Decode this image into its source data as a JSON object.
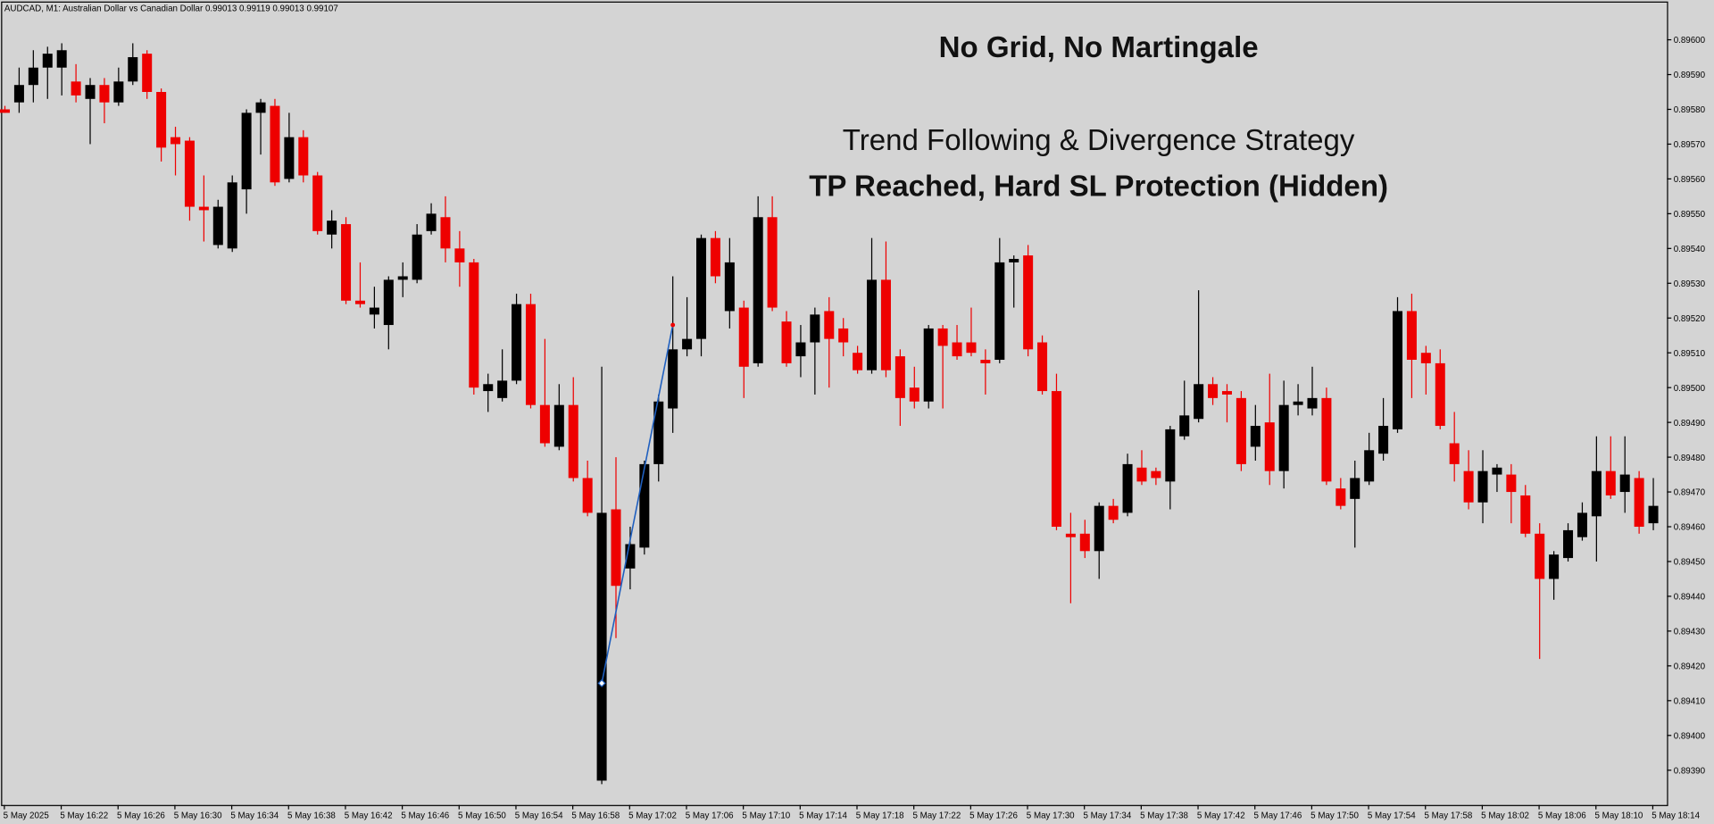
{
  "chart_data": {
    "type": "candlestick",
    "header": "AUDCAD, M1:  Australian Dollar vs Canadian Dollar  0.99013 0.99119 0.99013 0.99107",
    "title": "No Grid, No Martingale",
    "subtitle": "Trend Following & Divergence Strategy",
    "annotation": "TP Reached, Hard SL Protection (Hidden)",
    "up_color": "#000000",
    "down_color": "#ee0000",
    "trade_line": {
      "color": "#1f5fbf",
      "x": [
        42,
        47
      ],
      "values": [
        0.89415,
        0.89518
      ]
    },
    "ylim": [
      0.8938,
      0.89611
    ],
    "yticks": [
      {
        "value": 0.896,
        "label": "0.89600"
      },
      {
        "value": 0.8959,
        "label": "0.89590"
      },
      {
        "value": 0.8958,
        "label": "0.89580"
      },
      {
        "value": 0.8957,
        "label": "0.89570"
      },
      {
        "value": 0.8956,
        "label": "0.89560"
      },
      {
        "value": 0.8955,
        "label": "0.89550"
      },
      {
        "value": 0.8954,
        "label": "0.89540"
      },
      {
        "value": 0.8953,
        "label": "0.89530"
      },
      {
        "value": 0.8952,
        "label": "0.89520"
      },
      {
        "value": 0.8951,
        "label": "0.89510"
      },
      {
        "value": 0.895,
        "label": "0.89500"
      },
      {
        "value": 0.8949,
        "label": "0.89490"
      },
      {
        "value": 0.8948,
        "label": "0.89480"
      },
      {
        "value": 0.8947,
        "label": "0.89470"
      },
      {
        "value": 0.8946,
        "label": "0.89460"
      },
      {
        "value": 0.8945,
        "label": "0.89450"
      },
      {
        "value": 0.8944,
        "label": "0.89440"
      },
      {
        "value": 0.8943,
        "label": "0.89430"
      },
      {
        "value": 0.8942,
        "label": "0.89420"
      },
      {
        "value": 0.8941,
        "label": "0.89410"
      },
      {
        "value": 0.894,
        "label": "0.89400"
      },
      {
        "value": 0.8939,
        "label": "0.89390"
      }
    ],
    "xticks": [
      {
        "value": 0,
        "label": "5 May 2025"
      },
      {
        "value": 4,
        "label": "5 May 16:22"
      },
      {
        "value": 8,
        "label": "5 May 16:26"
      },
      {
        "value": 12,
        "label": "5 May 16:30"
      },
      {
        "value": 16,
        "label": "5 May 16:34"
      },
      {
        "value": 20,
        "label": "5 May 16:38"
      },
      {
        "value": 24,
        "label": "5 May 16:42"
      },
      {
        "value": 28,
        "label": "5 May 16:46"
      },
      {
        "value": 32,
        "label": "5 May 16:50"
      },
      {
        "value": 36,
        "label": "5 May 16:54"
      },
      {
        "value": 40,
        "label": "5 May 16:58"
      },
      {
        "value": 44,
        "label": "5 May 17:02"
      },
      {
        "value": 48,
        "label": "5 May 17:06"
      },
      {
        "value": 52,
        "label": "5 May 17:10"
      },
      {
        "value": 56,
        "label": "5 May 17:14"
      },
      {
        "value": 60,
        "label": "5 May 17:18"
      },
      {
        "value": 64,
        "label": "5 May 17:22"
      },
      {
        "value": 68,
        "label": "5 May 17:26"
      },
      {
        "value": 72,
        "label": "5 May 17:30"
      },
      {
        "value": 76,
        "label": "5 May 17:34"
      },
      {
        "value": 80,
        "label": "5 May 17:38"
      },
      {
        "value": 84,
        "label": "5 May 17:42"
      },
      {
        "value": 88,
        "label": "5 May 17:46"
      },
      {
        "value": 92,
        "label": "5 May 17:50"
      },
      {
        "value": 96,
        "label": "5 May 17:54"
      },
      {
        "value": 100,
        "label": "5 May 17:58"
      },
      {
        "value": 104,
        "label": "5 May 18:02"
      },
      {
        "value": 108,
        "label": "5 May 18:06"
      },
      {
        "value": 112,
        "label": "5 May 18:10"
      },
      {
        "value": 116,
        "label": "5 May 18:14"
      }
    ],
    "open": [
      0.8958,
      0.89582,
      0.89587,
      0.89592,
      0.89592,
      0.89588,
      0.89583,
      0.89587,
      0.89582,
      0.89588,
      0.89596,
      0.89585,
      0.89572,
      0.89571,
      0.89552,
      0.89541,
      0.8954,
      0.89557,
      0.89579,
      0.89581,
      0.8956,
      0.89572,
      0.89561,
      0.89544,
      0.89547,
      0.89525,
      0.89521,
      0.89518,
      0.89531,
      0.89531,
      0.89545,
      0.89549,
      0.8954,
      0.89536,
      0.89499,
      0.89497,
      0.89502,
      0.89524,
      0.89495,
      0.89483,
      0.89495,
      0.89474,
      0.89387,
      0.89465,
      0.89448,
      0.89454,
      0.89478,
      0.89494,
      0.89511,
      0.89514,
      0.89543,
      0.89522,
      0.89523,
      0.89507,
      0.89549,
      0.89519,
      0.89509,
      0.89513,
      0.89522,
      0.89517,
      0.8951,
      0.89505,
      0.89531,
      0.89509,
      0.895,
      0.89496,
      0.89517,
      0.89513,
      0.89513,
      0.89508,
      0.89508,
      0.89536,
      0.89538,
      0.89513,
      0.89499,
      0.89458,
      0.89458,
      0.89453,
      0.89466,
      0.89464,
      0.89477,
      0.89476,
      0.89473,
      0.89486,
      0.89491,
      0.89501,
      0.89499,
      0.89497,
      0.89483,
      0.8949,
      0.89476,
      0.89495,
      0.89494,
      0.89497,
      0.89471,
      0.89468,
      0.89473,
      0.89481,
      0.89488,
      0.89522,
      0.8951,
      0.89507,
      0.89484,
      0.89476,
      0.89467,
      0.89475,
      0.89475,
      0.89469,
      0.89458,
      0.89445,
      0.89451,
      0.89457,
      0.89463,
      0.89476,
      0.8947,
      0.89474,
      0.89461
    ],
    "high": [
      0.89581,
      0.89592,
      0.89597,
      0.89598,
      0.89599,
      0.89593,
      0.89589,
      0.89589,
      0.89592,
      0.89599,
      0.89597,
      0.89586,
      0.89575,
      0.89572,
      0.89561,
      0.89554,
      0.89561,
      0.8958,
      0.89583,
      0.89583,
      0.89579,
      0.89574,
      0.89562,
      0.89551,
      0.89549,
      0.89536,
      0.89529,
      0.89532,
      0.89536,
      0.89547,
      0.89553,
      0.89555,
      0.89545,
      0.89537,
      0.89504,
      0.89511,
      0.89527,
      0.89527,
      0.89514,
      0.89501,
      0.89503,
      0.89479,
      0.89506,
      0.8948,
      0.8946,
      0.89479,
      0.89498,
      0.89532,
      0.89526,
      0.89544,
      0.89545,
      0.89543,
      0.89525,
      0.89555,
      0.89555,
      0.89522,
      0.89518,
      0.89523,
      0.89526,
      0.8952,
      0.89512,
      0.89543,
      0.89542,
      0.89511,
      0.89506,
      0.89518,
      0.89518,
      0.89518,
      0.89523,
      0.89511,
      0.89543,
      0.89538,
      0.89541,
      0.89515,
      0.89504,
      0.89464,
      0.89462,
      0.89467,
      0.89468,
      0.89481,
      0.89482,
      0.89477,
      0.89489,
      0.89502,
      0.89528,
      0.89503,
      0.89501,
      0.89499,
      0.89495,
      0.89504,
      0.89502,
      0.89501,
      0.89506,
      0.895,
      0.89474,
      0.89479,
      0.89487,
      0.89497,
      0.89526,
      0.89527,
      0.89512,
      0.89511,
      0.89493,
      0.89482,
      0.89482,
      0.89478,
      0.89478,
      0.89472,
      0.89461,
      0.89453,
      0.89461,
      0.89467,
      0.89486,
      0.89486,
      0.89486,
      0.89476,
      0.89474
    ],
    "low": [
      0.89579,
      0.89579,
      0.89582,
      0.89583,
      0.89584,
      0.89582,
      0.8957,
      0.89576,
      0.89581,
      0.89587,
      0.89583,
      0.89565,
      0.89561,
      0.89548,
      0.89542,
      0.8954,
      0.89539,
      0.8955,
      0.89567,
      0.89558,
      0.89559,
      0.89559,
      0.89544,
      0.8954,
      0.89524,
      0.89523,
      0.89517,
      0.89511,
      0.89526,
      0.8953,
      0.89544,
      0.89536,
      0.89529,
      0.89498,
      0.89493,
      0.89496,
      0.89501,
      0.89494,
      0.89483,
      0.89482,
      0.89473,
      0.89463,
      0.89386,
      0.89428,
      0.89442,
      0.89452,
      0.89473,
      0.89487,
      0.89509,
      0.89509,
      0.8953,
      0.89517,
      0.89497,
      0.89506,
      0.89522,
      0.89506,
      0.89503,
      0.89498,
      0.895,
      0.89509,
      0.89504,
      0.89504,
      0.89503,
      0.89489,
      0.89494,
      0.89494,
      0.89494,
      0.89508,
      0.89509,
      0.89498,
      0.89507,
      0.89523,
      0.89509,
      0.89498,
      0.89459,
      0.89438,
      0.89451,
      0.89445,
      0.89461,
      0.89463,
      0.89472,
      0.89472,
      0.89465,
      0.89485,
      0.8949,
      0.89495,
      0.8949,
      0.89476,
      0.89479,
      0.89472,
      0.89471,
      0.89492,
      0.89492,
      0.89472,
      0.89465,
      0.89454,
      0.89472,
      0.89479,
      0.89487,
      0.89497,
      0.89498,
      0.89488,
      0.89473,
      0.89465,
      0.89461,
      0.8947,
      0.89461,
      0.89457,
      0.89422,
      0.89439,
      0.8945,
      0.89456,
      0.8945,
      0.89468,
      0.89464,
      0.89458,
      0.89459
    ],
    "close": [
      0.89579,
      0.89587,
      0.89592,
      0.89596,
      0.89597,
      0.89584,
      0.89587,
      0.89582,
      0.89588,
      0.89595,
      0.89585,
      0.89569,
      0.8957,
      0.89552,
      0.89551,
      0.89552,
      0.89559,
      0.89579,
      0.89582,
      0.89559,
      0.89572,
      0.89561,
      0.89545,
      0.89548,
      0.89525,
      0.89524,
      0.89523,
      0.89531,
      0.89532,
      0.89544,
      0.8955,
      0.8954,
      0.89536,
      0.895,
      0.89501,
      0.89502,
      0.89524,
      0.89495,
      0.89484,
      0.89495,
      0.89474,
      0.89464,
      0.89464,
      0.89443,
      0.89455,
      0.89478,
      0.89496,
      0.89511,
      0.89514,
      0.89543,
      0.89532,
      0.89536,
      0.89506,
      0.89549,
      0.89523,
      0.89507,
      0.89513,
      0.89521,
      0.89514,
      0.89513,
      0.89505,
      0.89531,
      0.89505,
      0.89497,
      0.89496,
      0.89517,
      0.89512,
      0.89509,
      0.8951,
      0.89507,
      0.89536,
      0.89537,
      0.89511,
      0.89499,
      0.8946,
      0.89457,
      0.89453,
      0.89466,
      0.89462,
      0.89478,
      0.89473,
      0.89474,
      0.89488,
      0.89492,
      0.89501,
      0.89497,
      0.89498,
      0.89478,
      0.89489,
      0.89476,
      0.89495,
      0.89496,
      0.89497,
      0.89473,
      0.89466,
      0.89474,
      0.89482,
      0.89489,
      0.89522,
      0.89508,
      0.89507,
      0.89489,
      0.89478,
      0.89467,
      0.89476,
      0.89477,
      0.8947,
      0.89458,
      0.89445,
      0.89452,
      0.89459,
      0.89464,
      0.89476,
      0.89469,
      0.89475,
      0.8946,
      0.89466
    ]
  }
}
